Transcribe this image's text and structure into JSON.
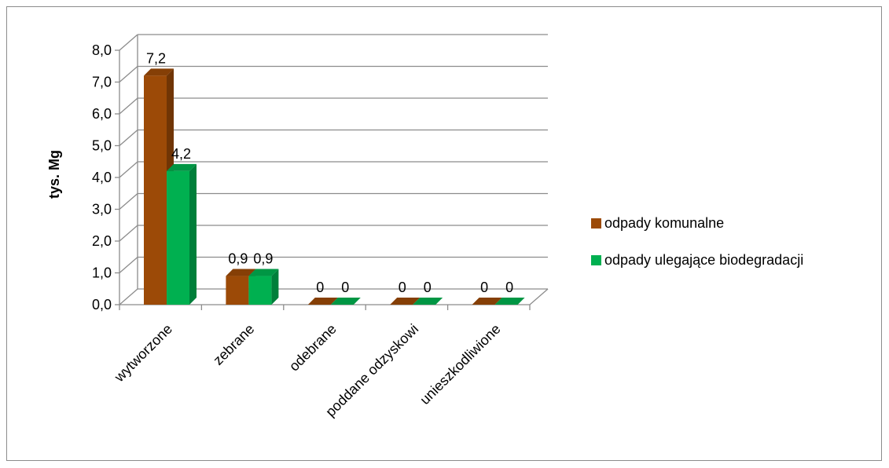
{
  "chart_data": {
    "type": "bar",
    "title": "",
    "ylabel": "tys.  Mg",
    "xlabel": "",
    "ylim": [
      0,
      8
    ],
    "yticks": [
      "0,0",
      "1,0",
      "2,0",
      "3,0",
      "4,0",
      "5,0",
      "6,0",
      "7,0",
      "8,0"
    ],
    "categories": [
      "wytworzone",
      "zebrane",
      "odebrane",
      "poddane odzyskowi",
      "unieszkodliwione"
    ],
    "series": [
      {
        "name": "odpady komunalne",
        "values": [
          7.2,
          0.9,
          0,
          0,
          0
        ],
        "labels": [
          "7,2",
          "0,9",
          "0",
          "0",
          "0"
        ],
        "color": "#9c4a07"
      },
      {
        "name": "odpady ulegające biodegradacji",
        "values": [
          4.2,
          0.9,
          0,
          0,
          0
        ],
        "labels": [
          "4,2",
          "0,9",
          "0",
          "0",
          "0"
        ],
        "color": "#00b050"
      }
    ],
    "grid": true,
    "legend": "right",
    "style": "3d-bar"
  }
}
